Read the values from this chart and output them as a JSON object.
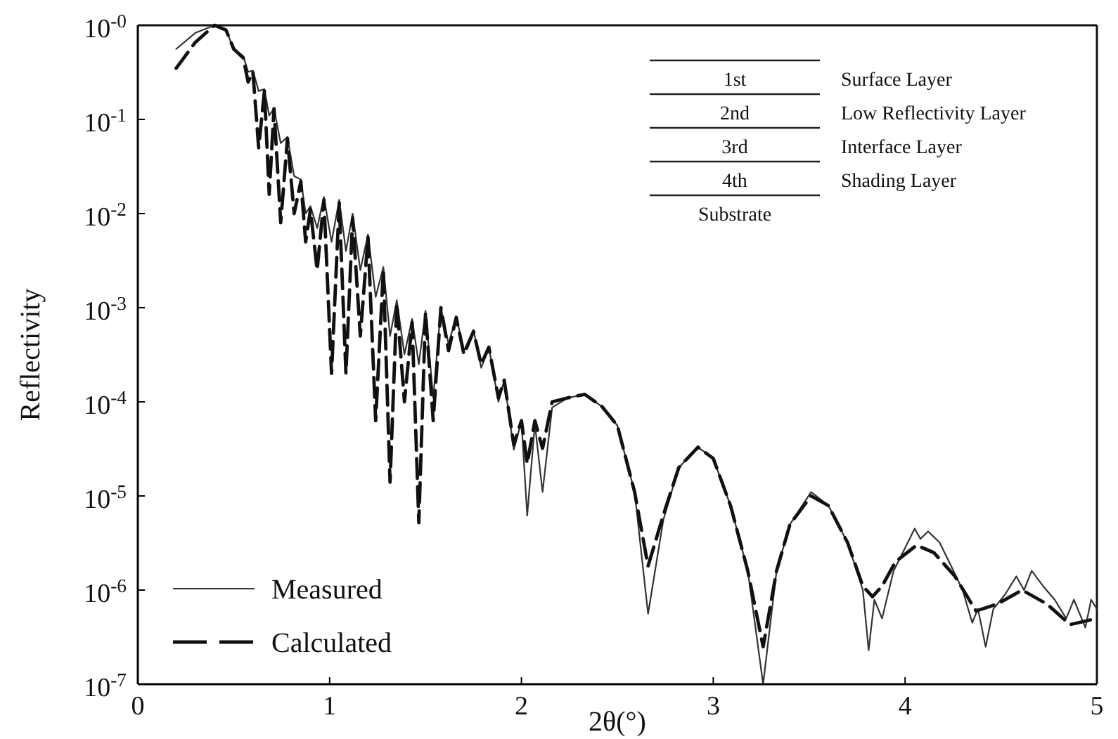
{
  "chart_data": {
    "type": "line",
    "xlabel": "2θ(°)",
    "ylabel": "Reflectivity",
    "log": "y",
    "xlim": [
      0,
      5
    ],
    "xticks": [
      0,
      1,
      2,
      3,
      4,
      5
    ],
    "ylim": [
      1e-07,
      1
    ],
    "yticks": [
      {
        "value": 1e-07,
        "label": "10$^{-7}$"
      },
      {
        "value": 1e-06,
        "label": "10$^{-6}$"
      },
      {
        "value": 1e-05,
        "label": "10$^{-5}$"
      },
      {
        "value": 0.0001,
        "label": "10$^{-4}$"
      },
      {
        "value": 0.001,
        "label": "10$^{-3}$"
      },
      {
        "value": 0.01,
        "label": "10$^{-2}$"
      },
      {
        "value": 0.1,
        "label": "10$^{-1}$"
      },
      {
        "value": 1,
        "label": "10$^{-0}$"
      }
    ],
    "grid": false,
    "legend": "bottom left",
    "marker": "none",
    "annotations": [
      "1st",
      "Surface Layer",
      "2nd",
      "Low Reflectivity Layer",
      "3rd",
      "Interface Layer",
      "4th",
      "Shading Layer",
      "Substrate"
    ],
    "series": [
      {
        "name": "Measured",
        "color": "#333333",
        "line_style": "solid",
        "x": [
          0.2,
          0.3,
          0.4,
          0.46,
          0.5,
          0.55,
          0.575,
          0.6,
          0.63,
          0.66,
          0.685,
          0.71,
          0.745,
          0.78,
          0.815,
          0.85,
          0.875,
          0.9,
          0.935,
          0.97,
          1.01,
          1.05,
          1.085,
          1.12,
          1.16,
          1.2,
          1.24,
          1.28,
          1.315,
          1.35,
          1.39,
          1.43,
          1.465,
          1.5,
          1.54,
          1.58,
          1.62,
          1.66,
          1.7,
          1.75,
          1.79,
          1.83,
          1.88,
          1.91,
          1.96,
          2.0,
          2.03,
          2.07,
          2.11,
          2.16,
          2.24,
          2.33,
          2.42,
          2.5,
          2.59,
          2.66,
          2.74,
          2.82,
          2.92,
          3.0,
          3.09,
          3.18,
          3.26,
          3.33,
          3.4,
          3.51,
          3.6,
          3.7,
          3.78,
          3.81,
          3.84,
          3.88,
          3.94,
          4.0,
          4.05,
          4.08,
          4.12,
          4.18,
          4.24,
          4.3,
          4.35,
          4.38,
          4.42,
          4.46,
          4.52,
          4.58,
          4.62,
          4.66,
          4.72,
          4.78,
          4.84,
          4.88,
          4.94,
          4.97,
          5.0
        ],
        "values": [
          0.56,
          0.83,
          1,
          0.89,
          0.56,
          0.47,
          0.32,
          0.33,
          0.2,
          0.21,
          0.11,
          0.13,
          0.056,
          0.065,
          0.025,
          0.023,
          0.01,
          0.012,
          0.007,
          0.015,
          0.005,
          0.014,
          0.004,
          0.01,
          0.0025,
          0.006,
          0.0013,
          0.0027,
          0.0005,
          0.0012,
          0.00032,
          0.00076,
          0.00025,
          0.00093,
          0.00011,
          0.001,
          0.00041,
          0.00081,
          0.00035,
          0.00058,
          0.00023,
          0.00038,
          0.0001,
          0.00017,
          3.1e-05,
          6.2e-05,
          6.2e-06,
          5.8e-05,
          1.1e-05,
          8.7e-05,
          0.00011,
          0.00012,
          8.9e-05,
          5.6e-05,
          1.1e-05,
          5.6e-07,
          5.6e-06,
          2e-05,
          3.3e-05,
          2.5e-05,
          7.9e-06,
          1.6e-06,
          1e-07,
          1.6e-06,
          5e-06,
          1.1e-05,
          7.9e-06,
          3.2e-06,
          1e-06,
          2.3e-07,
          7.9e-07,
          5e-07,
          1.6e-06,
          2.8e-06,
          4.5e-06,
          3.5e-06,
          4.2e-06,
          3.2e-06,
          1.8e-06,
          1e-06,
          4.5e-07,
          6.3e-07,
          2.5e-07,
          6.3e-07,
          8.9e-07,
          1.4e-06,
          1e-06,
          1.6e-06,
          1.1e-06,
          7.9e-07,
          5e-07,
          7.9e-07,
          4e-07,
          7.9e-07,
          6.3e-07
        ]
      },
      {
        "name": "Calculated",
        "color": "#111111",
        "line_style": "dashed",
        "x": [
          0.2,
          0.3,
          0.4,
          0.46,
          0.5,
          0.55,
          0.575,
          0.6,
          0.63,
          0.66,
          0.685,
          0.71,
          0.745,
          0.78,
          0.815,
          0.85,
          0.875,
          0.9,
          0.935,
          0.97,
          1.01,
          1.05,
          1.085,
          1.12,
          1.16,
          1.2,
          1.24,
          1.28,
          1.315,
          1.35,
          1.39,
          1.43,
          1.465,
          1.5,
          1.54,
          1.58,
          1.62,
          1.66,
          1.7,
          1.75,
          1.79,
          1.83,
          1.88,
          1.91,
          1.96,
          2.0,
          2.03,
          2.07,
          2.11,
          2.16,
          2.24,
          2.33,
          2.42,
          2.5,
          2.59,
          2.66,
          2.74,
          2.82,
          2.92,
          3.0,
          3.09,
          3.18,
          3.26,
          3.33,
          3.4,
          3.51,
          3.6,
          3.7,
          3.78,
          3.83,
          3.88,
          3.95,
          4.06,
          4.15,
          4.26,
          4.37,
          4.48,
          4.61,
          4.74,
          4.86,
          5.0
        ],
        "values": [
          0.35,
          0.66,
          1,
          0.89,
          0.56,
          0.45,
          0.25,
          0.32,
          0.05,
          0.2,
          0.016,
          0.13,
          0.008,
          0.063,
          0.01,
          0.022,
          0.005,
          0.011,
          0.0025,
          0.014,
          0.0002,
          0.013,
          0.0002,
          0.009,
          0.0005,
          0.0056,
          6.3e-05,
          0.0025,
          1.4e-05,
          0.0011,
          0.0001,
          0.0007,
          5.2e-06,
          0.00089,
          6.3e-05,
          0.001,
          0.00035,
          0.00079,
          0.00032,
          0.00056,
          0.00025,
          0.00038,
          0.00011,
          0.00017,
          3.5e-05,
          6.3e-05,
          2.2e-05,
          6.3e-05,
          3.2e-05,
          0.0001,
          0.00011,
          0.00012,
          8.9e-05,
          5.6e-05,
          1.1e-05,
          1.8e-06,
          6.3e-06,
          2e-05,
          3.3e-05,
          2.5e-05,
          7.9e-06,
          1.6e-06,
          2.5e-07,
          1.6e-06,
          5e-06,
          1e-05,
          7.9e-06,
          3.2e-06,
          1.1e-06,
          8.5e-07,
          1.1e-06,
          2e-06,
          3e-06,
          2.5e-06,
          1.4e-06,
          6e-07,
          7.1e-07,
          1e-06,
          7.1e-07,
          4.3e-07,
          5e-07
        ]
      }
    ]
  }
}
